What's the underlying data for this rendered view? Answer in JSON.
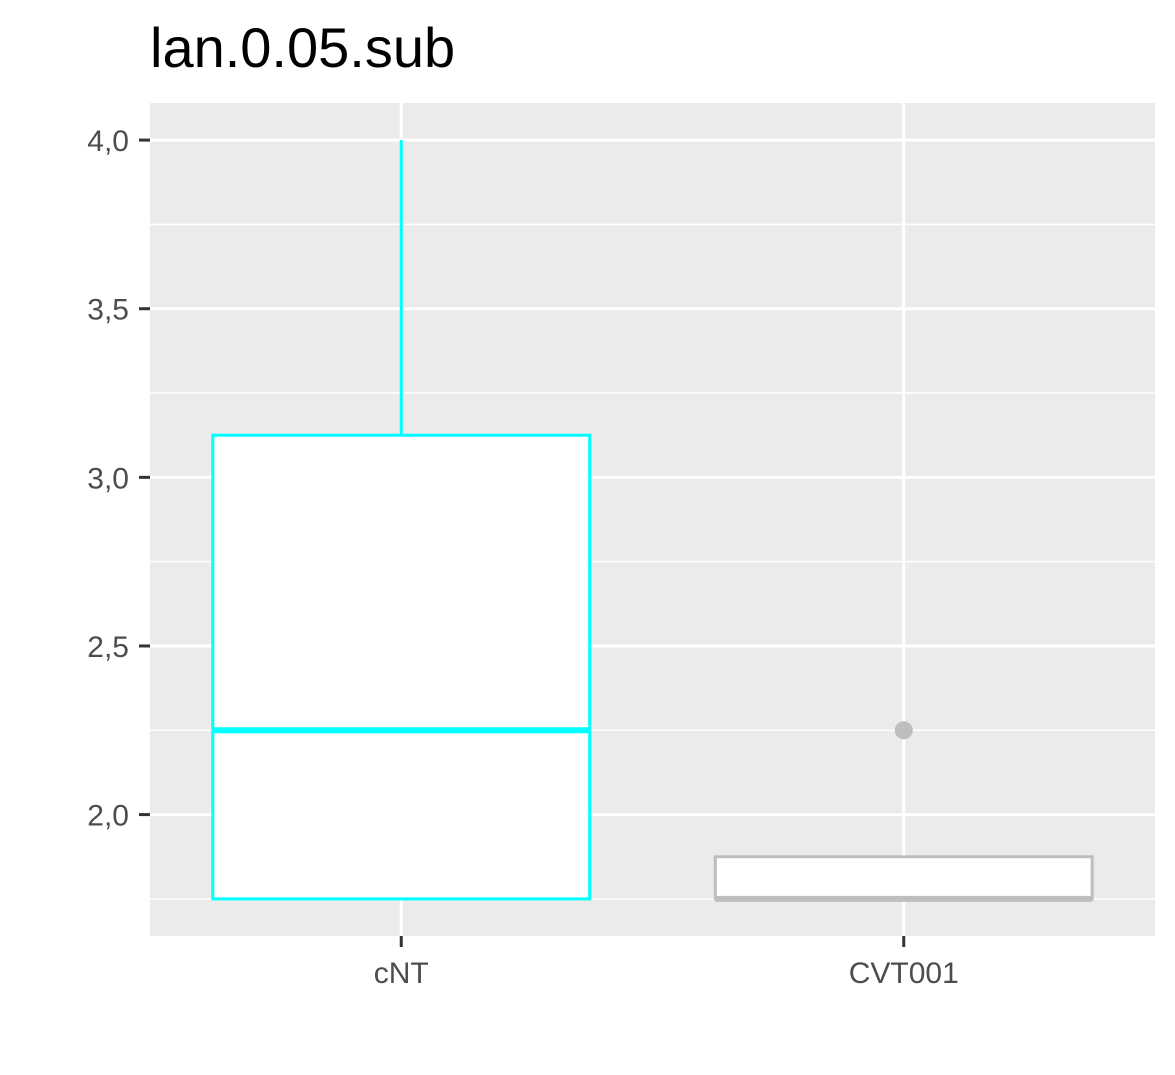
{
  "chart_data": {
    "type": "box",
    "title": "lan.0.05.sub",
    "xlabel": "",
    "ylabel": "",
    "categories": [
      "cNT",
      "CVT001"
    ],
    "y_ticks": [
      2.0,
      2.5,
      3.0,
      3.5,
      4.0
    ],
    "y_tick_labels": [
      "2,0",
      "2,5",
      "3,0",
      "3,5",
      "4,0"
    ],
    "ylim": [
      1.64,
      4.11
    ],
    "grid": true,
    "legend": "none",
    "boxes": [
      {
        "category": "cNT",
        "min": 1.75,
        "q1": 1.75,
        "median": 2.25,
        "q3": 3.125,
        "max": 4.0,
        "outliers": [],
        "color": "#00ffff"
      },
      {
        "category": "CVT001",
        "min": 1.75,
        "q1": 1.75,
        "median": 1.75,
        "q3": 1.875,
        "max": 1.875,
        "outliers": [
          2.25
        ],
        "color": "#bebebe"
      }
    ],
    "colors": {
      "panel": "#ebebeb",
      "grid": "#ffffff",
      "box_fill": "#ffffff"
    }
  }
}
